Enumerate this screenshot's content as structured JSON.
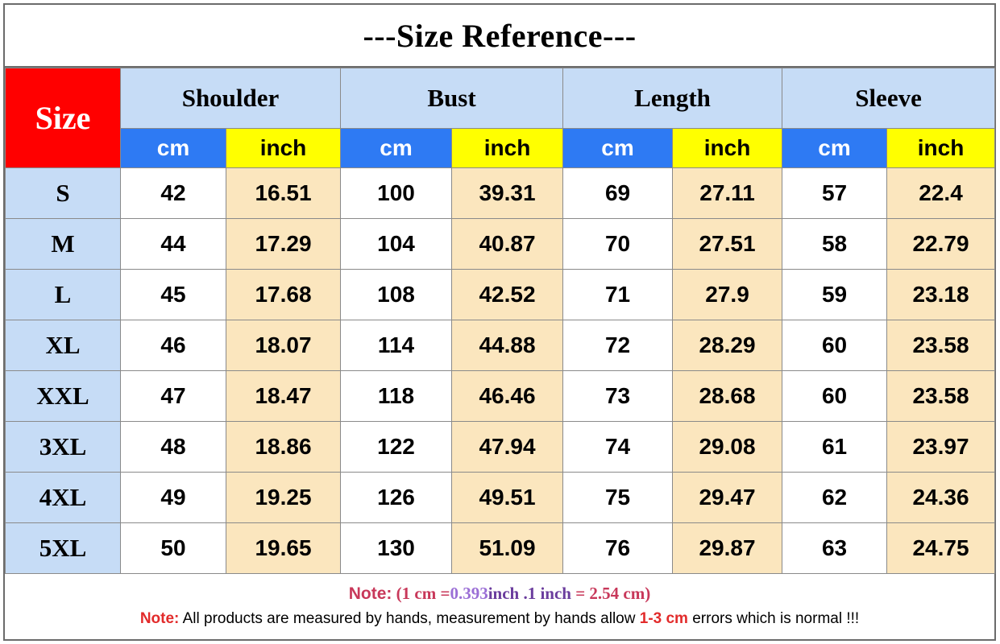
{
  "title": "---Size Reference---",
  "size_header": "Size",
  "groups": [
    "Shoulder",
    "Bust",
    "Length",
    "Sleeve"
  ],
  "units": {
    "cm": "cm",
    "inch": "inch"
  },
  "colors": {
    "size_header_bg": "#ff0000",
    "group_header_bg": "#c6dcf6",
    "cm_header_bg": "#2e7af3",
    "inch_header_bg": "#ffff00",
    "inch_cell_bg": "#fbe6be"
  },
  "rows": [
    {
      "size": "S",
      "shoulder_cm": "42",
      "shoulder_in": "16.51",
      "bust_cm": "100",
      "bust_in": "39.31",
      "length_cm": "69",
      "length_in": "27.11",
      "sleeve_cm": "57",
      "sleeve_in": "22.4"
    },
    {
      "size": "M",
      "shoulder_cm": "44",
      "shoulder_in": "17.29",
      "bust_cm": "104",
      "bust_in": "40.87",
      "length_cm": "70",
      "length_in": "27.51",
      "sleeve_cm": "58",
      "sleeve_in": "22.79"
    },
    {
      "size": "L",
      "shoulder_cm": "45",
      "shoulder_in": "17.68",
      "bust_cm": "108",
      "bust_in": "42.52",
      "length_cm": "71",
      "length_in": "27.9",
      "sleeve_cm": "59",
      "sleeve_in": "23.18"
    },
    {
      "size": "XL",
      "shoulder_cm": "46",
      "shoulder_in": "18.07",
      "bust_cm": "114",
      "bust_in": "44.88",
      "length_cm": "72",
      "length_in": "28.29",
      "sleeve_cm": "60",
      "sleeve_in": "23.58"
    },
    {
      "size": "XXL",
      "shoulder_cm": "47",
      "shoulder_in": "18.47",
      "bust_cm": "118",
      "bust_in": "46.46",
      "length_cm": "73",
      "length_in": "28.68",
      "sleeve_cm": "60",
      "sleeve_in": "23.58"
    },
    {
      "size": "3XL",
      "shoulder_cm": "48",
      "shoulder_in": "18.86",
      "bust_cm": "122",
      "bust_in": "47.94",
      "length_cm": "74",
      "length_in": "29.08",
      "sleeve_cm": "61",
      "sleeve_in": "23.97"
    },
    {
      "size": "4XL",
      "shoulder_cm": "49",
      "shoulder_in": "19.25",
      "bust_cm": "126",
      "bust_in": "49.51",
      "length_cm": "75",
      "length_in": "29.47",
      "sleeve_cm": "62",
      "sleeve_in": "24.36"
    },
    {
      "size": "5XL",
      "shoulder_cm": "50",
      "shoulder_in": "19.65",
      "bust_cm": "130",
      "bust_in": "51.09",
      "length_cm": "76",
      "length_in": "29.87",
      "sleeve_cm": "63",
      "sleeve_in": "24.75"
    }
  ],
  "note1": {
    "label": "Note:",
    "part_a": "(1 cm =",
    "part_b": "0.393",
    "part_c": "inch .1 inch",
    "part_d": " = 2.54 cm)"
  },
  "note2": {
    "label": "Note:",
    "text_a": " All products are measured by hands, measurement by hands allow ",
    "range": "1-3 cm",
    "text_b": " errors which is normal !!!"
  }
}
